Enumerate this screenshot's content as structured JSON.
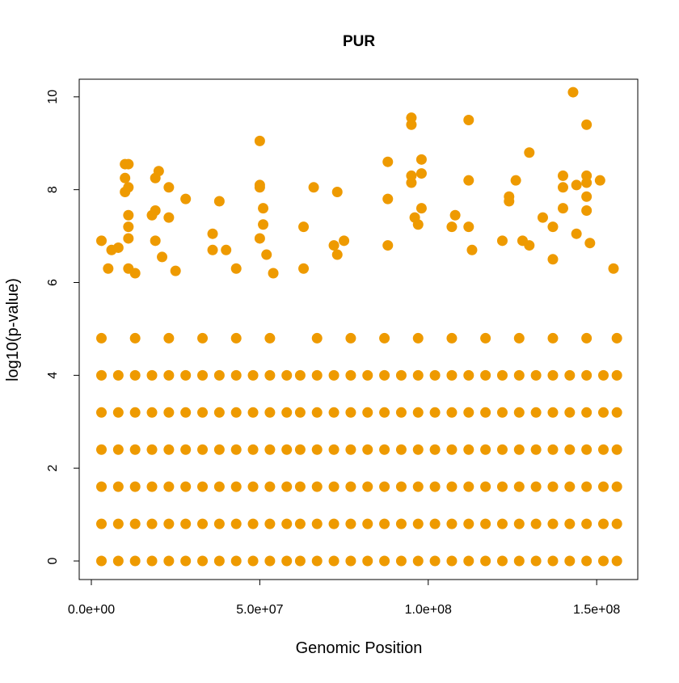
{
  "chart_data": {
    "type": "scatter",
    "title": "PUR",
    "x_label": "Genomic Position",
    "y_label": "log10(p-value)",
    "color": "#ee9a00",
    "xlim": [
      -3600000,
      162200000
    ],
    "ylim": [
      -0.4,
      10.38
    ],
    "xticks": [
      {
        "value": 0,
        "label": "0.0e+00"
      },
      {
        "value": 50000000,
        "label": "5.0e+07"
      },
      {
        "value": 100000000,
        "label": "1.0e+08"
      },
      {
        "value": 150000000,
        "label": "1.5e+08"
      }
    ],
    "yticks": [
      0,
      2,
      4,
      6,
      8,
      10
    ],
    "x": [
      3000000.0,
      8000000.0,
      13000000.0,
      18000000.0,
      23000000.0,
      28000000.0,
      33000000.0,
      38000000.0,
      43000000.0,
      48000000.0,
      53000000.0,
      58000000.0,
      62000000.0,
      67000000.0,
      72000000.0,
      77000000.0,
      82000000.0,
      87000000.0,
      92000000.0,
      97000000.0,
      102000000.0,
      107000000.0,
      112000000.0,
      117000000.0,
      122000000.0,
      127000000.0,
      132000000.0,
      137000000.0,
      142000000.0,
      147000000.0,
      152000000.0,
      156000000.0,
      3000000.0,
      8000000.0,
      13000000.0,
      18000000.0,
      23000000.0,
      28000000.0,
      33000000.0,
      38000000.0,
      43000000.0,
      48000000.0,
      53000000.0,
      58000000.0,
      62000000.0,
      67000000.0,
      72000000.0,
      77000000.0,
      82000000.0,
      87000000.0,
      92000000.0,
      97000000.0,
      102000000.0,
      107000000.0,
      112000000.0,
      117000000.0,
      122000000.0,
      127000000.0,
      132000000.0,
      137000000.0,
      142000000.0,
      147000000.0,
      152000000.0,
      156000000.0,
      3000000.0,
      8000000.0,
      13000000.0,
      18000000.0,
      23000000.0,
      28000000.0,
      33000000.0,
      38000000.0,
      43000000.0,
      48000000.0,
      53000000.0,
      58000000.0,
      62000000.0,
      67000000.0,
      72000000.0,
      77000000.0,
      82000000.0,
      87000000.0,
      92000000.0,
      97000000.0,
      102000000.0,
      107000000.0,
      112000000.0,
      117000000.0,
      122000000.0,
      127000000.0,
      132000000.0,
      137000000.0,
      142000000.0,
      147000000.0,
      152000000.0,
      156000000.0,
      3000000.0,
      8000000.0,
      13000000.0,
      18000000.0,
      23000000.0,
      28000000.0,
      33000000.0,
      38000000.0,
      43000000.0,
      48000000.0,
      53000000.0,
      58000000.0,
      62000000.0,
      67000000.0,
      72000000.0,
      77000000.0,
      82000000.0,
      87000000.0,
      92000000.0,
      97000000.0,
      102000000.0,
      107000000.0,
      112000000.0,
      117000000.0,
      122000000.0,
      127000000.0,
      132000000.0,
      137000000.0,
      142000000.0,
      147000000.0,
      152000000.0,
      156000000.0,
      3000000.0,
      8000000.0,
      13000000.0,
      18000000.0,
      23000000.0,
      28000000.0,
      33000000.0,
      38000000.0,
      43000000.0,
      48000000.0,
      53000000.0,
      58000000.0,
      62000000.0,
      67000000.0,
      72000000.0,
      77000000.0,
      82000000.0,
      87000000.0,
      92000000.0,
      97000000.0,
      102000000.0,
      107000000.0,
      112000000.0,
      117000000.0,
      122000000.0,
      127000000.0,
      132000000.0,
      137000000.0,
      142000000.0,
      147000000.0,
      152000000.0,
      156000000.0,
      3000000.0,
      8000000.0,
      13000000.0,
      18000000.0,
      23000000.0,
      28000000.0,
      33000000.0,
      38000000.0,
      43000000.0,
      48000000.0,
      53000000.0,
      58000000.0,
      62000000.0,
      67000000.0,
      72000000.0,
      77000000.0,
      82000000.0,
      87000000.0,
      92000000.0,
      97000000.0,
      102000000.0,
      107000000.0,
      112000000.0,
      117000000.0,
      122000000.0,
      127000000.0,
      132000000.0,
      137000000.0,
      142000000.0,
      147000000.0,
      152000000.0,
      156000000.0,
      3000000.0,
      13000000.0,
      23000000.0,
      33000000.0,
      43000000.0,
      53000000.0,
      67000000.0,
      77000000.0,
      87000000.0,
      97000000.0,
      107000000.0,
      117000000.0,
      127000000.0,
      137000000.0,
      147000000.0,
      156000000.0,
      3000000.0,
      5000000.0,
      6000000.0,
      8000000.0,
      10000000.0,
      11000000.0,
      10000000.0,
      11000000.0,
      10000000.0,
      11000000.0,
      11000000.0,
      11000000.0,
      11000000.0,
      13000000.0,
      18000000.0,
      19000000.0,
      19000000.0,
      20000000.0,
      19000000.0,
      23000000.0,
      23000000.0,
      21000000.0,
      25000000.0,
      28000000.0,
      36000000.0,
      36000000.0,
      38000000.0,
      40000000.0,
      43000000.0,
      50000000.0,
      50000000.0,
      50000000.0,
      51000000.0,
      51000000.0,
      50000000.0,
      52000000.0,
      54000000.0,
      63000000.0,
      63000000.0,
      66000000.0,
      73000000.0,
      72000000.0,
      73000000.0,
      75000000.0,
      88000000.0,
      88000000.0,
      88000000.0,
      95000000.0,
      95000000.0,
      95000000.0,
      95000000.0,
      98000000.0,
      98000000.0,
      98000000.0,
      97000000.0,
      96000000.0,
      108000000.0,
      107000000.0,
      112000000.0,
      112000000.0,
      112000000.0,
      113000000.0,
      124000000.0,
      124000000.0,
      126000000.0,
      130000000.0,
      130000000.0,
      134000000.0,
      137000000.0,
      140000000.0,
      140000000.0,
      140000000.0,
      143000000.0,
      144000000.0,
      144000000.0,
      147000000.0,
      147000000.0,
      147000000.0,
      147000000.0,
      147000000.0,
      148000000.0,
      151000000.0,
      155000000.0,
      128000000.0,
      122000000.0,
      137000000.0
    ],
    "values": [
      0,
      0,
      0,
      0,
      0,
      0,
      0,
      0,
      0,
      0,
      0,
      0,
      0,
      0,
      0,
      0,
      0,
      0,
      0,
      0,
      0,
      0,
      0,
      0,
      0,
      0,
      0,
      0,
      0,
      0,
      0,
      0,
      0.8,
      0.8,
      0.8,
      0.8,
      0.8,
      0.8,
      0.8,
      0.8,
      0.8,
      0.8,
      0.8,
      0.8,
      0.8,
      0.8,
      0.8,
      0.8,
      0.8,
      0.8,
      0.8,
      0.8,
      0.8,
      0.8,
      0.8,
      0.8,
      0.8,
      0.8,
      0.8,
      0.8,
      0.8,
      0.8,
      0.8,
      0.8,
      1.6,
      1.6,
      1.6,
      1.6,
      1.6,
      1.6,
      1.6,
      1.6,
      1.6,
      1.6,
      1.6,
      1.6,
      1.6,
      1.6,
      1.6,
      1.6,
      1.6,
      1.6,
      1.6,
      1.6,
      1.6,
      1.6,
      1.6,
      1.6,
      1.6,
      1.6,
      1.6,
      1.6,
      1.6,
      1.6,
      1.6,
      1.6,
      2.4,
      2.4,
      2.4,
      2.4,
      2.4,
      2.4,
      2.4,
      2.4,
      2.4,
      2.4,
      2.4,
      2.4,
      2.4,
      2.4,
      2.4,
      2.4,
      2.4,
      2.4,
      2.4,
      2.4,
      2.4,
      2.4,
      2.4,
      2.4,
      2.4,
      2.4,
      2.4,
      2.4,
      2.4,
      2.4,
      2.4,
      2.4,
      3.2,
      3.2,
      3.2,
      3.2,
      3.2,
      3.2,
      3.2,
      3.2,
      3.2,
      3.2,
      3.2,
      3.2,
      3.2,
      3.2,
      3.2,
      3.2,
      3.2,
      3.2,
      3.2,
      3.2,
      3.2,
      3.2,
      3.2,
      3.2,
      3.2,
      3.2,
      3.2,
      3.2,
      3.2,
      3.2,
      3.2,
      3.2,
      4,
      4,
      4,
      4,
      4,
      4,
      4,
      4,
      4,
      4,
      4,
      4,
      4,
      4,
      4,
      4,
      4,
      4,
      4,
      4,
      4,
      4,
      4,
      4,
      4,
      4,
      4,
      4,
      4,
      4,
      4,
      4,
      4.8,
      4.8,
      4.8,
      4.8,
      4.8,
      4.8,
      4.8,
      4.8,
      4.8,
      4.8,
      4.8,
      4.8,
      4.8,
      4.8,
      4.8,
      4.8,
      6.9,
      6.3,
      6.7,
      6.75,
      8.55,
      8.55,
      8.25,
      8.05,
      7.95,
      7.45,
      7.2,
      6.95,
      6.3,
      6.2,
      7.45,
      7.55,
      8.25,
      8.4,
      6.9,
      8.05,
      7.4,
      6.55,
      6.25,
      7.8,
      7.05,
      6.7,
      7.75,
      6.7,
      6.3,
      9.05,
      8.1,
      8.05,
      7.6,
      7.25,
      6.95,
      6.6,
      6.2,
      7.2,
      6.3,
      8.05,
      7.95,
      6.8,
      6.6,
      6.9,
      8.6,
      7.8,
      6.8,
      9.55,
      9.4,
      8.3,
      8.15,
      8.65,
      8.35,
      7.6,
      7.25,
      7.4,
      7.45,
      7.2,
      9.5,
      8.2,
      7.2,
      6.7,
      7.85,
      7.75,
      8.2,
      8.8,
      6.8,
      7.4,
      7.2,
      8.3,
      8.05,
      7.6,
      10.1,
      8.1,
      7.05,
      9.4,
      8.3,
      8.15,
      7.85,
      7.55,
      6.85,
      8.2,
      6.3,
      6.9,
      6.9,
      6.5
    ]
  }
}
